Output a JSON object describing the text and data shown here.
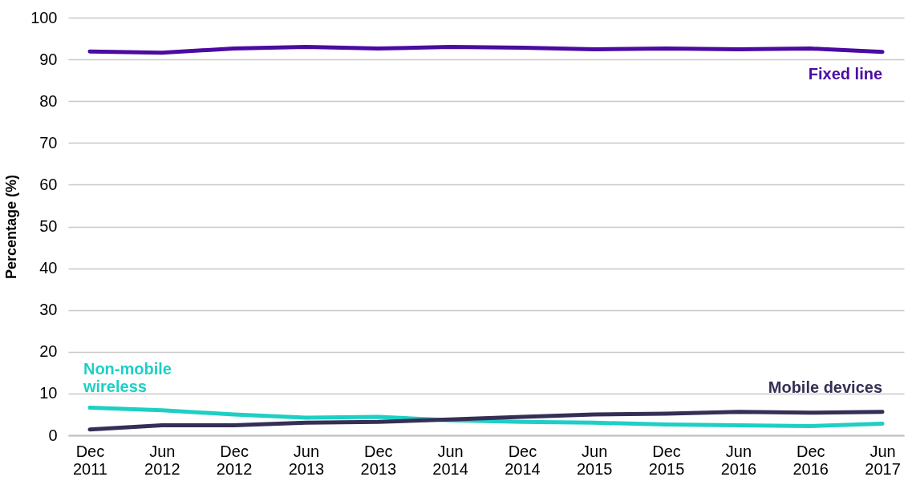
{
  "chart_data": {
    "type": "line",
    "ylabel": "Percentage (%)",
    "categories": [
      "Dec 2011",
      "Jun 2012",
      "Dec 2012",
      "Jun 2013",
      "Dec 2013",
      "Jun 2014",
      "Dec 2014",
      "Jun 2015",
      "Dec 2015",
      "Jun 2016",
      "Dec 2016",
      "Jun 2017"
    ],
    "series": [
      {
        "name": "Fixed line",
        "color": "#4b0aa1",
        "values": [
          91.9,
          91.6,
          92.6,
          93.0,
          92.6,
          93.0,
          92.8,
          92.4,
          92.6,
          92.4,
          92.6,
          91.8
        ]
      },
      {
        "name": "Non-mobile wireless",
        "color": "#1ecfc5",
        "values": [
          6.6,
          6.0,
          5.0,
          4.2,
          4.4,
          3.6,
          3.2,
          3.0,
          2.6,
          2.4,
          2.2,
          2.8
        ]
      },
      {
        "name": "Mobile devices",
        "color": "#352f56",
        "values": [
          1.4,
          2.4,
          2.4,
          3.0,
          3.2,
          3.8,
          4.4,
          5.0,
          5.2,
          5.6,
          5.4,
          5.6
        ]
      }
    ],
    "ylim": [
      0,
      100
    ],
    "yticks": [
      0,
      10,
      20,
      30,
      40,
      50,
      60,
      70,
      80,
      90,
      100
    ],
    "grid": "y",
    "marker": "none",
    "line_style": "solid"
  }
}
